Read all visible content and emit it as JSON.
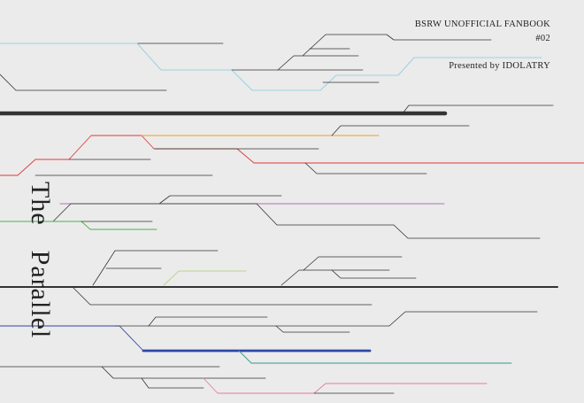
{
  "header": {
    "series": "BSRW UNOFFICIAL FANBOOK",
    "issue": "#02",
    "presented_by": "Presented by IDOLATRY"
  },
  "title": {
    "word1": "The",
    "word2": "Parallel"
  },
  "colors": {
    "background": "#ebebeb",
    "thin_line": "#333333",
    "thick_line": "#333333",
    "light_blue": "#9fd0e0",
    "orange": "#f0a020",
    "red": "#e03a3a",
    "purple": "#b070b0",
    "green": "#4caf50",
    "lime": "#b9d68a",
    "navy": "#2d46a6",
    "teal": "#3a9a8a",
    "pink": "#e87aa0"
  }
}
